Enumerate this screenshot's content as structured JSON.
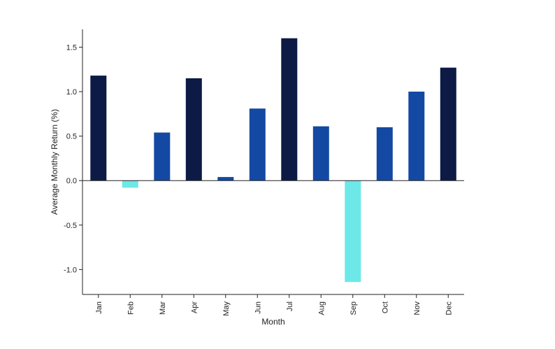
{
  "chart_data": {
    "type": "bar",
    "title": "",
    "xlabel": "Month",
    "ylabel": "Average Monthly Return (%)",
    "categories": [
      "Jan",
      "Feb",
      "Mar",
      "Apr",
      "May",
      "Jun",
      "Jul",
      "Aug",
      "Sep",
      "Oct",
      "Nov",
      "Dec"
    ],
    "values": [
      1.18,
      -0.08,
      0.54,
      1.15,
      0.04,
      0.81,
      1.6,
      0.61,
      -1.14,
      0.6,
      1.0,
      1.27
    ],
    "ylim": [
      -1.28,
      1.7
    ],
    "yticks": [
      -1.0,
      -0.5,
      0.0,
      0.5,
      1.0,
      1.5
    ],
    "ytick_labels": [
      "-1.0",
      "-0.5",
      "0.0",
      "0.5",
      "1.0",
      "1.5"
    ],
    "grid": false,
    "zero_line": true,
    "colors": {
      "high": "#0c1a45",
      "mid": "#1449a3",
      "negative": "#6de8e8",
      "axis": "#222222"
    },
    "color_rule": "value >= 1.1 uses high, 0 <= value < 1.1 uses mid, value < 0 uses negative"
  }
}
